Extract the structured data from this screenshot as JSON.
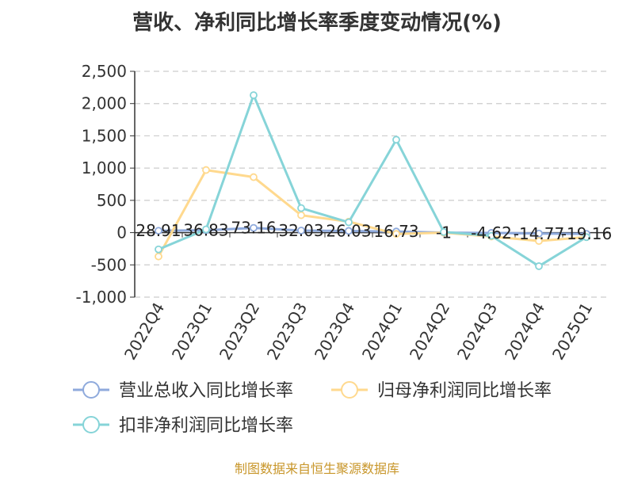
{
  "title": "营收、净利同比增长率季度变动情况(%)",
  "footer": "制图数据来自恒生聚源数据库",
  "colors": {
    "revenue": "#8faadc",
    "net_profit": "#ffd98e",
    "deducted_profit": "#86d4d8",
    "axis": "#333333",
    "grid": "#cccccc",
    "footer": "#c8962a"
  },
  "chart_data": {
    "type": "line",
    "categories": [
      "2022Q4",
      "2023Q1",
      "2023Q2",
      "2023Q3",
      "2023Q4",
      "2024Q1",
      "2024Q2",
      "2024Q3",
      "2024Q4",
      "2025Q1"
    ],
    "ylim": [
      -1000,
      2500
    ],
    "yticks": [
      -1000,
      -500,
      0,
      500,
      1000,
      1500,
      2000,
      2500
    ],
    "ytick_labels": [
      "-1,000",
      "-500",
      "0",
      "500",
      "1,000",
      "1,500",
      "2,000",
      "2,500"
    ],
    "grid": "horizontal-dashed",
    "legend_position": "bottom",
    "series": [
      {
        "name": "营业总收入同比增长率",
        "color": "#8faadc",
        "values": [
          28.91,
          36.83,
          73.16,
          32.03,
          26.03,
          16.73,
          -1,
          -4.62,
          -14.77,
          -19.16
        ],
        "labels": [
          "28.91",
          "36.83",
          "73.16",
          "32.03",
          "26.03",
          "16.73",
          "-1",
          "-4.62",
          "-14.77",
          "-19.16"
        ]
      },
      {
        "name": "归母净利润同比增长率",
        "color": "#ffd98e",
        "values": [
          -370,
          970,
          860,
          270,
          170,
          -20,
          0,
          -60,
          -130,
          -70
        ]
      },
      {
        "name": "扣非净利润同比增长率",
        "color": "#86d4d8",
        "values": [
          -260,
          50,
          2130,
          380,
          160,
          1440,
          10,
          -50,
          -520,
          -70
        ]
      }
    ]
  }
}
